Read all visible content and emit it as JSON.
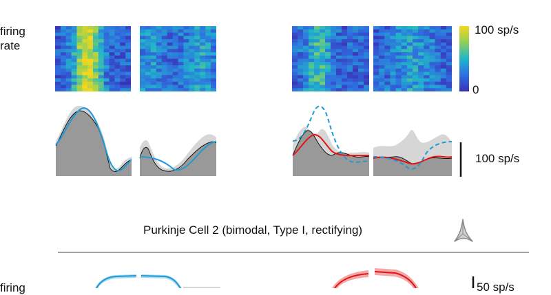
{
  "left_label": {
    "line1": "firing",
    "line2": "rate"
  },
  "colorbar": {
    "max_label": "100 sp/s",
    "min_label": "0",
    "low_color": "#3b2fb5",
    "high_color": "#f7d51d"
  },
  "scalebar": {
    "label": "100 sp/s"
  },
  "section_title": "Purkinje Cell 2 (bimodal, Type I, rectifying)",
  "lower_scalebar": {
    "label": "50 sp/s"
  },
  "lower_left_label": "firing",
  "colors": {
    "trace_gray": "#999999",
    "trace_light_gray": "#d6d6d6",
    "blue_fit": "#1e9ad6",
    "red_fit": "#e01515",
    "red_band": "#f3a7a7",
    "blue_band": "#a9d8ef"
  },
  "icons": {
    "cell_marker": "tristar-icon"
  }
}
